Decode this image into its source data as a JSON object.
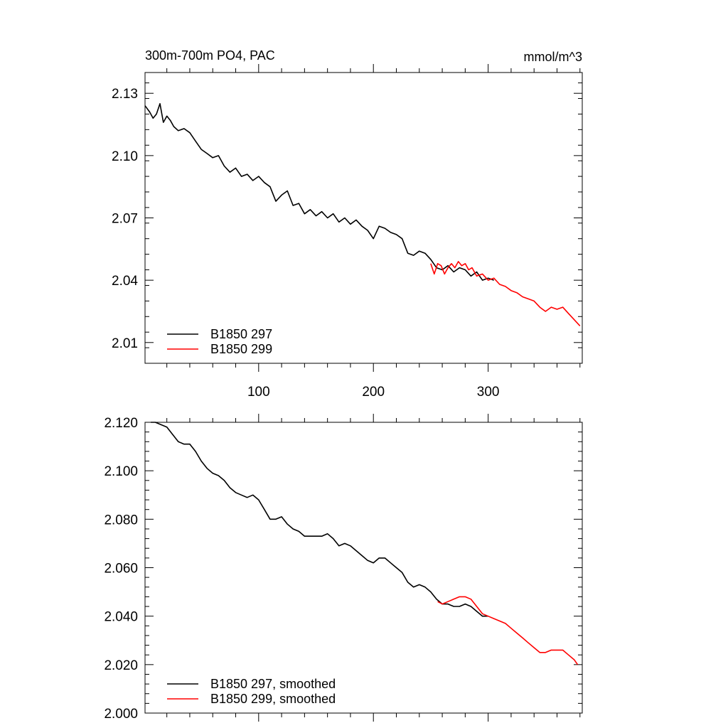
{
  "chart_data": [
    {
      "type": "line",
      "title": "300m-700m PO4, PAC",
      "units": "mmol/m^3",
      "xlim": [
        1,
        382
      ],
      "ylim": [
        2.0,
        2.14
      ],
      "x_ticks": [
        100,
        200,
        300
      ],
      "x_tick_labels": [
        "100",
        "200",
        "300"
      ],
      "y_ticks": [
        2.01,
        2.04,
        2.07,
        2.1,
        2.13
      ],
      "y_tick_labels": [
        "2.01",
        "2.04",
        "2.07",
        "2.10",
        "2.13"
      ],
      "legend_position": "bottom-left",
      "series": [
        {
          "name": "B1850 297",
          "color": "#000000",
          "x": [
            1,
            5,
            8,
            11,
            14,
            17,
            20,
            23,
            26,
            30,
            35,
            40,
            45,
            50,
            55,
            60,
            65,
            70,
            75,
            80,
            85,
            90,
            95,
            100,
            105,
            110,
            115,
            120,
            125,
            130,
            135,
            140,
            145,
            150,
            155,
            160,
            165,
            170,
            175,
            180,
            185,
            190,
            195,
            200,
            205,
            210,
            215,
            220,
            225,
            230,
            235,
            240,
            245,
            250,
            255,
            260,
            265,
            270,
            275,
            280,
            285,
            290,
            295,
            300,
            305
          ],
          "y": [
            2.124,
            2.121,
            2.118,
            2.12,
            2.125,
            2.116,
            2.119,
            2.117,
            2.114,
            2.112,
            2.113,
            2.111,
            2.107,
            2.103,
            2.101,
            2.099,
            2.1,
            2.095,
            2.092,
            2.094,
            2.09,
            2.091,
            2.088,
            2.09,
            2.087,
            2.085,
            2.078,
            2.081,
            2.083,
            2.076,
            2.077,
            2.072,
            2.074,
            2.071,
            2.073,
            2.07,
            2.072,
            2.068,
            2.07,
            2.067,
            2.069,
            2.066,
            2.064,
            2.06,
            2.066,
            2.065,
            2.063,
            2.062,
            2.06,
            2.053,
            2.052,
            2.054,
            2.053,
            2.05,
            2.046,
            2.045,
            2.047,
            2.044,
            2.046,
            2.045,
            2.042,
            2.044,
            2.04,
            2.041,
            2.04
          ]
        },
        {
          "name": "B1850 299",
          "color": "#ff0000",
          "x": [
            250,
            253,
            256,
            259,
            262,
            265,
            268,
            271,
            274,
            277,
            280,
            283,
            286,
            290,
            295,
            300,
            305,
            310,
            315,
            320,
            325,
            330,
            335,
            340,
            345,
            350,
            355,
            360,
            365,
            370,
            375,
            380
          ],
          "y": [
            2.048,
            2.043,
            2.048,
            2.047,
            2.043,
            2.046,
            2.048,
            2.046,
            2.049,
            2.047,
            2.048,
            2.045,
            2.046,
            2.042,
            2.043,
            2.04,
            2.041,
            2.038,
            2.037,
            2.035,
            2.034,
            2.032,
            2.031,
            2.03,
            2.027,
            2.025,
            2.027,
            2.026,
            2.027,
            2.024,
            2.021,
            2.018
          ]
        }
      ]
    },
    {
      "type": "line",
      "xlim": [
        1,
        382
      ],
      "ylim": [
        2.0,
        2.12
      ],
      "x_ticks": [
        100,
        200,
        300
      ],
      "y_ticks": [
        2.0,
        2.02,
        2.04,
        2.06,
        2.08,
        2.1,
        2.12
      ],
      "y_tick_labels": [
        "2.000",
        "2.020",
        "2.040",
        "2.060",
        "2.080",
        "2.100",
        "2.120"
      ],
      "legend_position": "bottom-left",
      "series": [
        {
          "name": "B1850 297, smoothed",
          "color": "#000000",
          "x": [
            6,
            10,
            15,
            20,
            25,
            30,
            35,
            40,
            45,
            50,
            55,
            60,
            65,
            70,
            75,
            80,
            85,
            90,
            95,
            100,
            105,
            110,
            115,
            120,
            125,
            130,
            135,
            140,
            145,
            150,
            155,
            160,
            165,
            170,
            175,
            180,
            185,
            190,
            195,
            200,
            205,
            210,
            215,
            220,
            225,
            230,
            235,
            240,
            245,
            250,
            255,
            260,
            265,
            270,
            275,
            280,
            285,
            290,
            295,
            300
          ],
          "y": [
            2.12,
            2.12,
            2.119,
            2.118,
            2.115,
            2.112,
            2.111,
            2.111,
            2.108,
            2.104,
            2.101,
            2.099,
            2.098,
            2.096,
            2.093,
            2.091,
            2.09,
            2.089,
            2.09,
            2.088,
            2.084,
            2.08,
            2.08,
            2.081,
            2.078,
            2.076,
            2.075,
            2.073,
            2.073,
            2.073,
            2.073,
            2.074,
            2.072,
            2.069,
            2.07,
            2.069,
            2.067,
            2.065,
            2.063,
            2.062,
            2.064,
            2.064,
            2.062,
            2.06,
            2.058,
            2.054,
            2.052,
            2.053,
            2.052,
            2.05,
            2.047,
            2.045,
            2.045,
            2.044,
            2.044,
            2.045,
            2.044,
            2.042,
            2.04,
            2.04
          ]
        },
        {
          "name": "B1850 299, smoothed",
          "color": "#ff0000",
          "x": [
            256,
            260,
            265,
            270,
            275,
            280,
            285,
            290,
            295,
            300,
            305,
            310,
            315,
            320,
            325,
            330,
            335,
            340,
            345,
            350,
            355,
            360,
            365,
            370,
            375,
            378
          ],
          "y": [
            2.046,
            2.045,
            2.046,
            2.047,
            2.048,
            2.048,
            2.047,
            2.044,
            2.041,
            2.04,
            2.039,
            2.038,
            2.037,
            2.035,
            2.033,
            2.031,
            2.029,
            2.027,
            2.025,
            2.025,
            2.026,
            2.026,
            2.026,
            2.024,
            2.022,
            2.02
          ]
        }
      ]
    }
  ]
}
